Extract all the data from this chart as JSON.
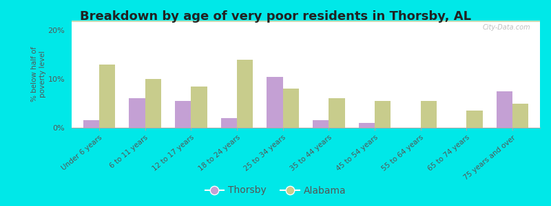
{
  "title": "Breakdown by age of very poor residents in Thorsby, AL",
  "ylabel": "% below half of\npoverty level",
  "categories": [
    "Under 6 years",
    "6 to 11 years",
    "12 to 17 years",
    "18 to 24 years",
    "25 to 34 years",
    "35 to 44 years",
    "45 to 54 years",
    "55 to 64 years",
    "65 to 74 years",
    "75 years and over"
  ],
  "thorsby": [
    1.5,
    6.0,
    5.5,
    2.0,
    10.5,
    1.5,
    1.0,
    0.0,
    0.0,
    7.5
  ],
  "alabama": [
    13.0,
    10.0,
    8.5,
    14.0,
    8.0,
    6.0,
    5.5,
    5.5,
    3.5,
    5.0
  ],
  "thorsby_color": "#c4a0d4",
  "alabama_color": "#c8cc8c",
  "background_outer": "#00e8e8",
  "ylim": [
    0,
    22
  ],
  "yticks": [
    0,
    10,
    20
  ],
  "ytick_labels": [
    "0%",
    "10%",
    "20%"
  ],
  "title_fontsize": 13,
  "label_fontsize": 7.5,
  "tick_fontsize": 8,
  "legend_fontsize": 10,
  "bar_width": 0.35,
  "watermark": "City-Data.com"
}
